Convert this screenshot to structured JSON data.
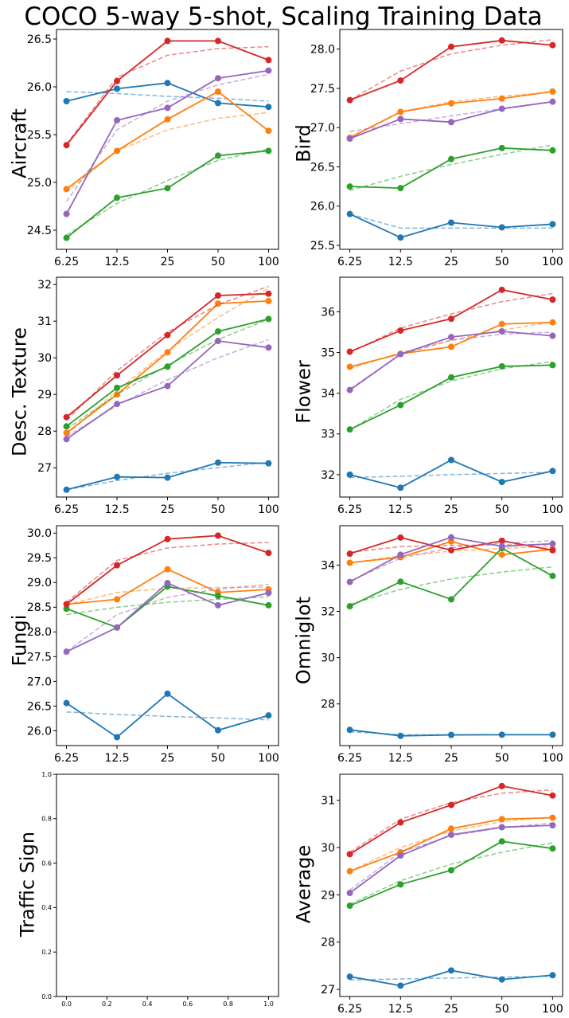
{
  "figure_title": "COCO 5-way 5-shot, Scaling Training Data",
  "series_colors": [
    "#1f77b4",
    "#ff7f0e",
    "#2ca02c",
    "#d62728",
    "#9467bd"
  ],
  "chart_data": [
    {
      "type": "line",
      "title": "Aircraft",
      "ylabel": "Aircraft",
      "categories": [
        "6.25",
        "12.5",
        "25",
        "50",
        "100"
      ],
      "ylim": [
        24.3,
        26.6
      ],
      "yticks": [
        24.5,
        25.0,
        25.5,
        26.0,
        26.5
      ],
      "ytick_labels": [
        "24.5",
        "25.0",
        "25.5",
        "26.0",
        "26.5"
      ],
      "series": [
        {
          "name": "blue",
          "values": [
            25.85,
            25.98,
            26.04,
            25.83,
            25.79
          ],
          "trend": [
            25.95,
            25.93,
            25.9,
            25.88,
            25.85
          ]
        },
        {
          "name": "orange",
          "values": [
            24.93,
            25.33,
            25.66,
            25.95,
            25.54
          ],
          "trend": [
            24.9,
            25.33,
            25.55,
            25.67,
            25.73
          ]
        },
        {
          "name": "green",
          "values": [
            24.42,
            24.84,
            24.94,
            25.28,
            25.33
          ],
          "trend": [
            24.45,
            24.78,
            25.02,
            25.23,
            25.35
          ]
        },
        {
          "name": "red",
          "values": [
            25.39,
            26.06,
            26.48,
            26.48,
            26.28
          ],
          "trend": [
            25.4,
            26.1,
            26.33,
            26.4,
            26.42
          ]
        },
        {
          "name": "purple",
          "values": [
            24.67,
            25.65,
            25.78,
            26.09,
            26.17
          ],
          "trend": [
            24.8,
            25.55,
            25.85,
            26.02,
            26.13
          ]
        }
      ]
    },
    {
      "type": "line",
      "title": "Bird",
      "ylabel": "Bird",
      "categories": [
        "6.25",
        "12.5",
        "25",
        "50",
        "100"
      ],
      "ylim": [
        25.45,
        28.25
      ],
      "yticks": [
        25.5,
        26.0,
        26.5,
        27.0,
        27.5,
        28.0
      ],
      "ytick_labels": [
        "25.5",
        "26.0",
        "26.5",
        "27.0",
        "27.5",
        "28.0"
      ],
      "series": [
        {
          "name": "blue",
          "values": [
            25.9,
            25.6,
            25.79,
            25.73,
            25.77
          ],
          "trend": [
            25.9,
            25.72,
            25.72,
            25.72,
            25.72
          ]
        },
        {
          "name": "orange",
          "values": [
            26.87,
            27.2,
            27.31,
            27.37,
            27.46
          ],
          "trend": [
            26.88,
            27.2,
            27.33,
            27.4,
            27.45
          ]
        },
        {
          "name": "green",
          "values": [
            26.25,
            26.23,
            26.6,
            26.74,
            26.71
          ],
          "trend": [
            26.2,
            26.38,
            26.53,
            26.66,
            26.78
          ]
        },
        {
          "name": "red",
          "values": [
            27.35,
            27.6,
            28.03,
            28.11,
            28.05
          ],
          "trend": [
            27.35,
            27.72,
            27.94,
            28.05,
            28.12
          ]
        },
        {
          "name": "purple",
          "values": [
            26.86,
            27.11,
            27.07,
            27.24,
            27.33
          ],
          "trend": [
            26.95,
            27.05,
            27.15,
            27.24,
            27.33
          ]
        }
      ]
    },
    {
      "type": "line",
      "title": "Desc. Texture",
      "ylabel": "Desc. Texture",
      "categories": [
        "6.25",
        "12.5",
        "25",
        "50",
        "100"
      ],
      "ylim": [
        26.2,
        32.2
      ],
      "yticks": [
        27,
        28,
        29,
        30,
        31,
        32
      ],
      "ytick_labels": [
        "27",
        "28",
        "29",
        "30",
        "31",
        "32"
      ],
      "series": [
        {
          "name": "blue",
          "values": [
            26.4,
            26.75,
            26.73,
            27.14,
            27.12
          ],
          "trend": [
            26.4,
            26.65,
            26.85,
            27.0,
            27.15
          ]
        },
        {
          "name": "orange",
          "values": [
            27.95,
            29.0,
            30.15,
            31.48,
            31.55
          ],
          "trend": [
            27.9,
            29.1,
            30.2,
            31.1,
            31.9
          ]
        },
        {
          "name": "green",
          "values": [
            28.13,
            29.18,
            29.76,
            30.72,
            31.06
          ],
          "trend": [
            28.05,
            29.0,
            29.8,
            30.5,
            31.05
          ]
        },
        {
          "name": "red",
          "values": [
            28.38,
            29.52,
            30.62,
            31.7,
            31.75
          ],
          "trend": [
            28.3,
            29.65,
            30.7,
            31.45,
            31.95
          ]
        },
        {
          "name": "purple",
          "values": [
            27.78,
            28.74,
            29.23,
            30.46,
            30.28
          ],
          "trend": [
            27.85,
            28.7,
            29.4,
            30.0,
            30.5
          ]
        }
      ]
    },
    {
      "type": "line",
      "title": "Flower",
      "ylabel": "Flower",
      "categories": [
        "6.25",
        "12.5",
        "25",
        "50",
        "100"
      ],
      "ylim": [
        31.45,
        36.85
      ],
      "yticks": [
        32,
        33,
        34,
        35,
        36
      ],
      "ytick_labels": [
        "32",
        "33",
        "34",
        "35",
        "36"
      ],
      "series": [
        {
          "name": "blue",
          "values": [
            32.0,
            31.68,
            32.36,
            31.82,
            32.09
          ],
          "trend": [
            31.93,
            31.96,
            32.0,
            32.03,
            32.06
          ]
        },
        {
          "name": "orange",
          "values": [
            34.65,
            34.97,
            35.14,
            35.7,
            35.74
          ],
          "trend": [
            34.6,
            35.0,
            35.3,
            35.55,
            35.75
          ]
        },
        {
          "name": "green",
          "values": [
            33.11,
            33.71,
            34.39,
            34.66,
            34.69
          ],
          "trend": [
            33.1,
            33.85,
            34.3,
            34.6,
            34.78
          ]
        },
        {
          "name": "red",
          "values": [
            35.02,
            35.54,
            35.83,
            36.54,
            36.3
          ],
          "trend": [
            35.0,
            35.6,
            35.95,
            36.25,
            36.45
          ]
        },
        {
          "name": "purple",
          "values": [
            34.08,
            34.96,
            35.38,
            35.52,
            35.41
          ],
          "trend": [
            34.1,
            34.95,
            35.3,
            35.45,
            35.5
          ]
        }
      ]
    },
    {
      "type": "line",
      "title": "Fungi",
      "ylabel": "Fungi",
      "categories": [
        "6.25",
        "12.5",
        "25",
        "50",
        "100"
      ],
      "ylim": [
        25.7,
        30.15
      ],
      "yticks": [
        26.0,
        26.5,
        27.0,
        27.5,
        28.0,
        28.5,
        29.0,
        29.5,
        30.0
      ],
      "ytick_labels": [
        "26.0",
        "26.5",
        "27.0",
        "27.5",
        "28.0",
        "28.5",
        "29.0",
        "29.5",
        "30.0"
      ],
      "series": [
        {
          "name": "blue",
          "values": [
            26.56,
            25.87,
            26.75,
            26.01,
            26.31
          ],
          "trend": [
            26.38,
            26.33,
            26.29,
            26.26,
            26.22
          ]
        },
        {
          "name": "orange",
          "values": [
            28.56,
            28.66,
            29.27,
            28.8,
            28.86
          ],
          "trend": [
            28.55,
            28.8,
            28.88,
            28.9,
            28.91
          ]
        },
        {
          "name": "green",
          "values": [
            28.47,
            28.09,
            28.92,
            28.73,
            28.54
          ],
          "trend": [
            28.35,
            28.5,
            28.6,
            28.66,
            28.71
          ]
        },
        {
          "name": "red",
          "values": [
            28.56,
            29.35,
            29.88,
            29.95,
            29.6
          ],
          "trend": [
            28.6,
            29.45,
            29.7,
            29.78,
            29.81
          ]
        },
        {
          "name": "purple",
          "values": [
            27.6,
            28.09,
            28.99,
            28.54,
            28.79
          ],
          "trend": [
            27.6,
            28.35,
            28.7,
            28.87,
            28.96
          ]
        }
      ]
    },
    {
      "type": "line",
      "title": "Omniglot",
      "ylabel": "Omniglot",
      "categories": [
        "6.25",
        "12.5",
        "25",
        "50",
        "100"
      ],
      "ylim": [
        26.2,
        35.7
      ],
      "yticks": [
        28,
        30,
        32,
        34
      ],
      "ytick_labels": [
        "28",
        "30",
        "32",
        "34"
      ],
      "series": [
        {
          "name": "blue",
          "values": [
            26.88,
            26.62,
            26.66,
            26.67,
            26.67
          ],
          "trend": [
            26.8,
            26.67,
            26.67,
            26.67,
            26.67
          ]
        },
        {
          "name": "orange",
          "values": [
            34.1,
            34.34,
            35.02,
            34.45,
            34.68
          ],
          "trend": [
            34.1,
            34.4,
            34.6,
            34.72,
            34.8
          ]
        },
        {
          "name": "green",
          "values": [
            32.22,
            33.28,
            32.52,
            34.73,
            33.53
          ],
          "trend": [
            32.3,
            32.95,
            33.4,
            33.7,
            33.92
          ]
        },
        {
          "name": "red",
          "values": [
            34.49,
            35.19,
            34.64,
            35.05,
            34.64
          ],
          "trend": [
            34.55,
            34.8,
            34.85,
            34.87,
            34.88
          ]
        },
        {
          "name": "purple",
          "values": [
            33.27,
            34.45,
            35.2,
            34.81,
            34.92
          ],
          "trend": [
            33.3,
            34.3,
            34.75,
            34.95,
            35.05
          ]
        }
      ]
    },
    {
      "type": "line",
      "title": "Traffic Sign",
      "ylabel": "Traffic Sign",
      "categories": [
        "0.0",
        "0.2",
        "0.4",
        "0.6",
        "0.8",
        "1.0"
      ],
      "xlim": [
        0,
        1
      ],
      "ylim": [
        0,
        1
      ],
      "yticks": [
        0.0,
        0.2,
        0.4,
        0.6,
        0.8,
        1.0
      ],
      "ytick_labels": [
        "0.0",
        "0.2",
        "0.4",
        "0.6",
        "0.8",
        "1.0"
      ],
      "series": []
    },
    {
      "type": "line",
      "title": "Average",
      "ylabel": "Average",
      "categories": [
        "6.25",
        "12.5",
        "25",
        "50",
        "100"
      ],
      "ylim": [
        26.85,
        31.55
      ],
      "yticks": [
        27,
        28,
        29,
        30,
        31
      ],
      "ytick_labels": [
        "27",
        "28",
        "29",
        "30",
        "31"
      ],
      "series": [
        {
          "name": "blue",
          "values": [
            27.27,
            27.08,
            27.4,
            27.21,
            27.3
          ],
          "trend": [
            27.2,
            27.22,
            27.24,
            27.26,
            27.28
          ]
        },
        {
          "name": "orange",
          "values": [
            29.5,
            29.9,
            30.4,
            30.6,
            30.63
          ],
          "trend": [
            29.5,
            30.0,
            30.35,
            30.55,
            30.65
          ]
        },
        {
          "name": "green",
          "values": [
            28.77,
            29.22,
            29.52,
            30.13,
            29.98
          ],
          "trend": [
            28.8,
            29.3,
            29.65,
            29.9,
            30.1
          ]
        },
        {
          "name": "red",
          "values": [
            29.86,
            30.53,
            30.9,
            31.3,
            31.1
          ],
          "trend": [
            29.9,
            30.6,
            30.95,
            31.15,
            31.22
          ]
        },
        {
          "name": "purple",
          "values": [
            29.04,
            29.83,
            30.27,
            30.43,
            30.47
          ],
          "trend": [
            29.1,
            29.9,
            30.25,
            30.42,
            30.52
          ]
        }
      ]
    }
  ]
}
